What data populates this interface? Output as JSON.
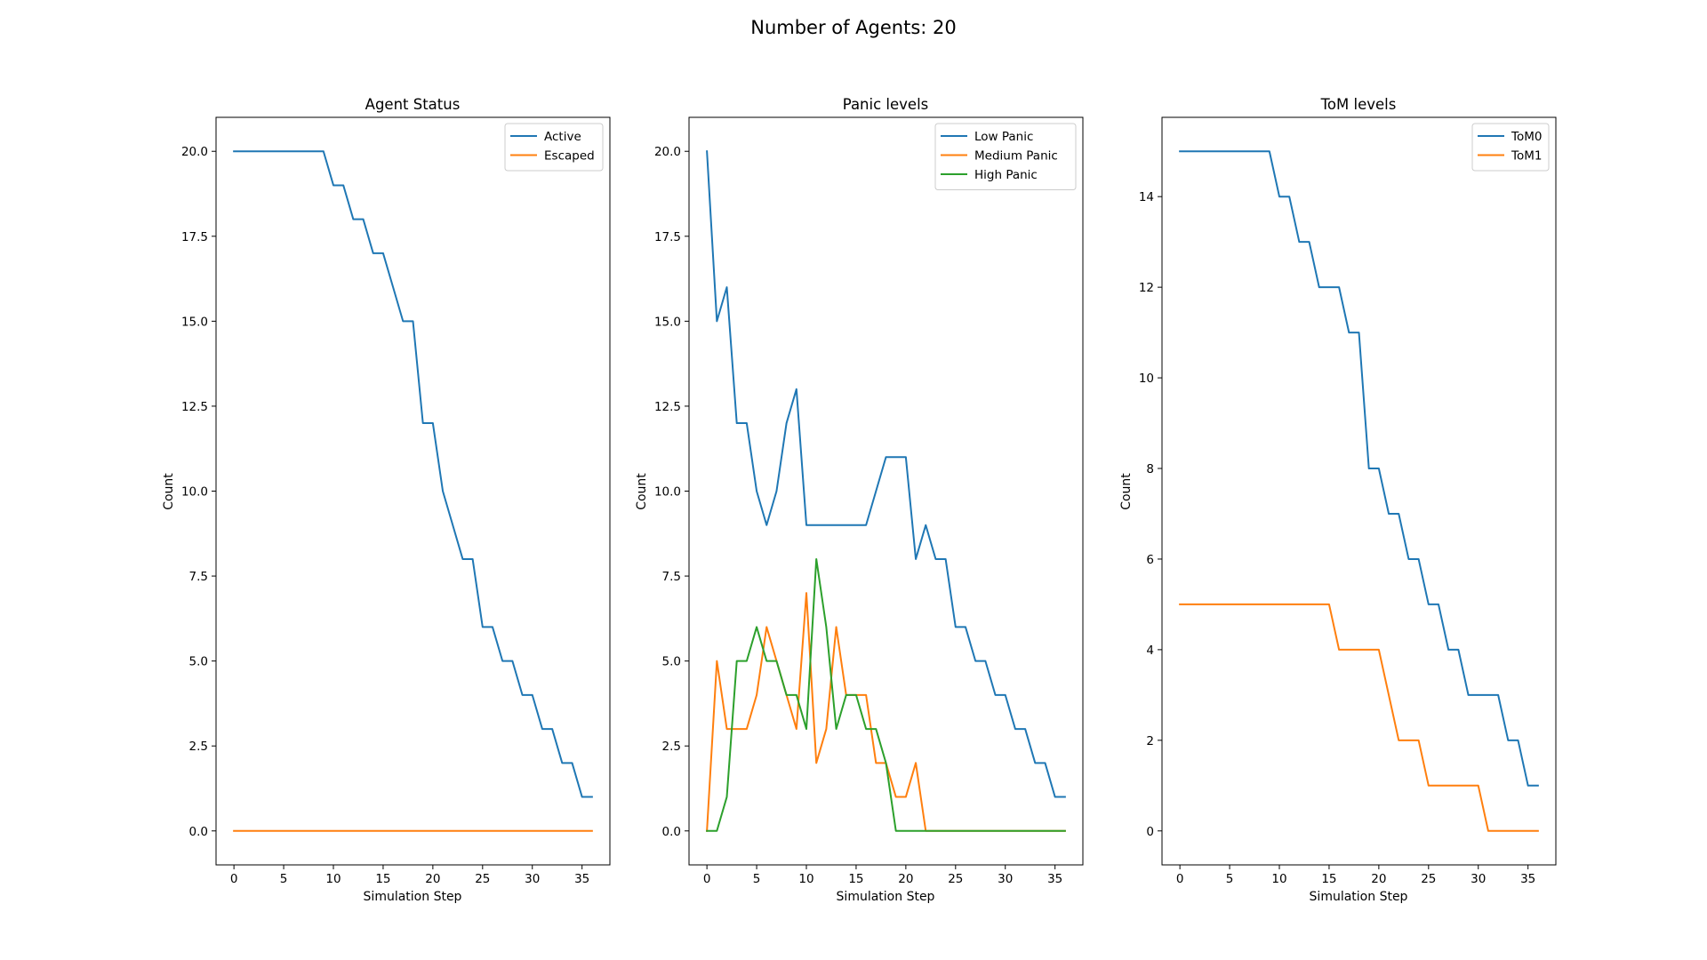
{
  "figure": {
    "suptitle": "Number of Agents: 20"
  },
  "chart_data": [
    {
      "type": "line",
      "title": "Agent Status",
      "xlabel": "Simulation Step",
      "ylabel": "Count",
      "xlim": [
        -1.8,
        37.8
      ],
      "ylim": [
        -1.0,
        21.0
      ],
      "xticks": [
        0,
        5,
        10,
        15,
        20,
        25,
        30,
        35
      ],
      "yticks": [
        0.0,
        2.5,
        5.0,
        7.5,
        10.0,
        12.5,
        15.0,
        17.5,
        20.0
      ],
      "ytick_labels": [
        "0.0",
        "2.5",
        "5.0",
        "7.5",
        "10.0",
        "12.5",
        "15.0",
        "17.5",
        "20.0"
      ],
      "legend_position": "top-right",
      "series": [
        {
          "name": "Active",
          "color": "#1f77b4",
          "values": [
            20,
            20,
            20,
            20,
            20,
            20,
            20,
            20,
            20,
            20,
            19,
            19,
            18,
            18,
            17,
            17,
            16,
            15,
            15,
            12,
            12,
            10,
            9,
            8,
            8,
            6,
            6,
            5,
            5,
            4,
            4,
            3,
            3,
            2,
            2,
            1,
            1
          ]
        },
        {
          "name": "Escaped",
          "color": "#ff7f0e",
          "values": [
            0,
            0,
            0,
            0,
            0,
            0,
            0,
            0,
            0,
            0,
            0,
            0,
            0,
            0,
            0,
            0,
            0,
            0,
            0,
            0,
            0,
            0,
            0,
            0,
            0,
            0,
            0,
            0,
            0,
            0,
            0,
            0,
            0,
            0,
            0,
            0,
            0
          ]
        }
      ]
    },
    {
      "type": "line",
      "title": "Panic levels",
      "xlabel": "Simulation Step",
      "ylabel": "Count",
      "xlim": [
        -1.8,
        37.8
      ],
      "ylim": [
        -1.0,
        21.0
      ],
      "xticks": [
        0,
        5,
        10,
        15,
        20,
        25,
        30,
        35
      ],
      "yticks": [
        0.0,
        2.5,
        5.0,
        7.5,
        10.0,
        12.5,
        15.0,
        17.5,
        20.0
      ],
      "ytick_labels": [
        "0.0",
        "2.5",
        "5.0",
        "7.5",
        "10.0",
        "12.5",
        "15.0",
        "17.5",
        "20.0"
      ],
      "legend_position": "top-right",
      "series": [
        {
          "name": "Low Panic",
          "color": "#1f77b4",
          "values": [
            20,
            15,
            16,
            12,
            12,
            10,
            9,
            10,
            12,
            13,
            9,
            9,
            9,
            9,
            9,
            9,
            9,
            10,
            11,
            11,
            11,
            8,
            9,
            8,
            8,
            6,
            6,
            5,
            5,
            4,
            4,
            3,
            3,
            2,
            2,
            1,
            1
          ]
        },
        {
          "name": "Medium Panic",
          "color": "#ff7f0e",
          "values": [
            0,
            5,
            3,
            3,
            3,
            4,
            6,
            5,
            4,
            3,
            7,
            2,
            3,
            6,
            4,
            4,
            4,
            2,
            2,
            1,
            1,
            2,
            0,
            0,
            0,
            0,
            0,
            0,
            0,
            0,
            0,
            0,
            0,
            0,
            0,
            0,
            0
          ]
        },
        {
          "name": "High Panic",
          "color": "#2ca02c",
          "values": [
            0,
            0,
            1,
            5,
            5,
            6,
            5,
            5,
            4,
            4,
            3,
            8,
            6,
            3,
            4,
            4,
            3,
            3,
            2,
            0,
            0,
            0,
            0,
            0,
            0,
            0,
            0,
            0,
            0,
            0,
            0,
            0,
            0,
            0,
            0,
            0,
            0
          ]
        }
      ]
    },
    {
      "type": "line",
      "title": "ToM levels",
      "xlabel": "Simulation Step",
      "ylabel": "Count",
      "xlim": [
        -1.8,
        37.8
      ],
      "ylim": [
        -0.75,
        15.75
      ],
      "xticks": [
        0,
        5,
        10,
        15,
        20,
        25,
        30,
        35
      ],
      "yticks": [
        0,
        2,
        4,
        6,
        8,
        10,
        12,
        14
      ],
      "ytick_labels": [
        "0",
        "2",
        "4",
        "6",
        "8",
        "10",
        "12",
        "14"
      ],
      "legend_position": "top-right",
      "series": [
        {
          "name": "ToM0",
          "color": "#1f77b4",
          "values": [
            15,
            15,
            15,
            15,
            15,
            15,
            15,
            15,
            15,
            15,
            14,
            14,
            13,
            13,
            12,
            12,
            12,
            11,
            11,
            8,
            8,
            7,
            7,
            6,
            6,
            5,
            5,
            4,
            4,
            3,
            3,
            3,
            3,
            2,
            2,
            1,
            1
          ]
        },
        {
          "name": "ToM1",
          "color": "#ff7f0e",
          "values": [
            5,
            5,
            5,
            5,
            5,
            5,
            5,
            5,
            5,
            5,
            5,
            5,
            5,
            5,
            5,
            5,
            4,
            4,
            4,
            4,
            4,
            3,
            2,
            2,
            2,
            1,
            1,
            1,
            1,
            1,
            1,
            0,
            0,
            0,
            0,
            0,
            0
          ]
        }
      ]
    }
  ]
}
